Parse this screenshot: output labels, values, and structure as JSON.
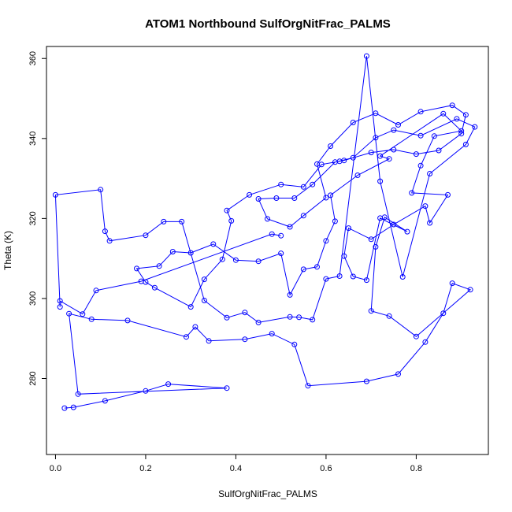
{
  "chart_data": {
    "type": "scatter",
    "title": "ATOM1 Northbound SulfOrgNitFrac_PALMS",
    "xlabel": "SulfOrgNitFrac_PALMS",
    "ylabel": "Theta (K)",
    "xlim": [
      -0.02,
      0.96
    ],
    "ylim": [
      261,
      363
    ],
    "xticks": [
      0.0,
      0.2,
      0.4,
      0.6,
      0.8
    ],
    "xtick_labels": [
      "0.0",
      "0.2",
      "0.4",
      "0.6",
      "0.8"
    ],
    "yticks": [
      280,
      300,
      320,
      340,
      360
    ],
    "ytick_labels": [
      "280",
      "300",
      "320",
      "340",
      "360"
    ],
    "grid": false,
    "legend": "none",
    "series_color": "#0000ff",
    "style": "open circles connected by lines",
    "points": [
      [
        0.02,
        272.6
      ],
      [
        0.04,
        272.8
      ],
      [
        0.11,
        274.4
      ],
      [
        0.2,
        276.9
      ],
      [
        0.25,
        278.6
      ],
      [
        0.38,
        277.6
      ],
      [
        0.05,
        276.1
      ],
      [
        0.03,
        296.2
      ],
      [
        0.08,
        294.8
      ],
      [
        0.16,
        294.5
      ],
      [
        0.29,
        290.4
      ],
      [
        0.31,
        292.9
      ],
      [
        0.34,
        289.4
      ],
      [
        0.42,
        289.8
      ],
      [
        0.48,
        291.2
      ],
      [
        0.53,
        288.5
      ],
      [
        0.56,
        278.2
      ],
      [
        0.69,
        279.3
      ],
      [
        0.76,
        281.1
      ],
      [
        0.82,
        289.1
      ],
      [
        0.86,
        296.3
      ],
      [
        0.88,
        303.8
      ],
      [
        0.92,
        302.2
      ],
      [
        0.8,
        290.5
      ],
      [
        0.74,
        295.6
      ],
      [
        0.7,
        296.9
      ],
      [
        0.71,
        312.9
      ],
      [
        0.73,
        320.3
      ],
      [
        0.78,
        316.7
      ],
      [
        0.72,
        320.1
      ],
      [
        0.69,
        304.6
      ],
      [
        0.66,
        305.5
      ],
      [
        0.64,
        310.6
      ],
      [
        0.65,
        317.6
      ],
      [
        0.7,
        314.8
      ],
      [
        0.75,
        318.5
      ],
      [
        0.82,
        323.1
      ],
      [
        0.83,
        318.9
      ],
      [
        0.87,
        325.9
      ],
      [
        0.79,
        326.4
      ],
      [
        0.81,
        333.2
      ],
      [
        0.84,
        340.6
      ],
      [
        0.9,
        341.9
      ],
      [
        0.86,
        346.2
      ],
      [
        0.72,
        335.6
      ],
      [
        0.74,
        334.9
      ],
      [
        0.67,
        330.8
      ],
      [
        0.61,
        325.8
      ],
      [
        0.62,
        319.3
      ],
      [
        0.6,
        314.4
      ],
      [
        0.58,
        307.9
      ],
      [
        0.55,
        307.3
      ],
      [
        0.52,
        300.9
      ],
      [
        0.5,
        311.3
      ],
      [
        0.45,
        309.3
      ],
      [
        0.4,
        309.6
      ],
      [
        0.35,
        313.6
      ],
      [
        0.3,
        311.4
      ],
      [
        0.26,
        311.7
      ],
      [
        0.23,
        308.1
      ],
      [
        0.18,
        307.5
      ],
      [
        0.2,
        304.1
      ],
      [
        0.22,
        302.7
      ],
      [
        0.3,
        297.9
      ],
      [
        0.33,
        304.8
      ],
      [
        0.37,
        309.8
      ],
      [
        0.39,
        319.4
      ],
      [
        0.38,
        322.0
      ],
      [
        0.43,
        325.9
      ],
      [
        0.5,
        328.5
      ],
      [
        0.55,
        327.9
      ],
      [
        0.59,
        333.5
      ],
      [
        0.63,
        334.3
      ],
      [
        0.64,
        334.5
      ],
      [
        0.7,
        336.5
      ],
      [
        0.75,
        337.2
      ],
      [
        0.8,
        336.1
      ],
      [
        0.85,
        337.0
      ],
      [
        0.9,
        341.2
      ],
      [
        0.91,
        345.9
      ],
      [
        0.88,
        348.3
      ],
      [
        0.81,
        346.7
      ],
      [
        0.76,
        343.4
      ],
      [
        0.71,
        346.3
      ],
      [
        0.66,
        344.0
      ],
      [
        0.61,
        338.1
      ],
      [
        0.58,
        333.6
      ],
      [
        0.6,
        325.2
      ],
      [
        0.55,
        320.7
      ],
      [
        0.52,
        317.9
      ],
      [
        0.47,
        319.9
      ],
      [
        0.45,
        324.9
      ],
      [
        0.49,
        325.1
      ],
      [
        0.53,
        325.1
      ],
      [
        0.57,
        328.5
      ],
      [
        0.62,
        334.1
      ],
      [
        0.66,
        335.2
      ],
      [
        0.71,
        340.2
      ],
      [
        0.75,
        342.1
      ],
      [
        0.81,
        340.7
      ],
      [
        0.89,
        344.9
      ],
      [
        0.93,
        342.9
      ],
      [
        0.91,
        338.5
      ],
      [
        0.83,
        331.2
      ],
      [
        0.77,
        305.4
      ],
      [
        0.72,
        329.3
      ],
      [
        0.69,
        360.6
      ],
      [
        0.63,
        305.6
      ],
      [
        0.6,
        304.9
      ],
      [
        0.57,
        294.7
      ],
      [
        0.54,
        295.3
      ],
      [
        0.52,
        295.4
      ],
      [
        0.45,
        294.0
      ],
      [
        0.42,
        296.5
      ],
      [
        0.38,
        295.2
      ],
      [
        0.33,
        299.5
      ],
      [
        0.28,
        319.2
      ],
      [
        0.24,
        319.2
      ],
      [
        0.2,
        315.8
      ],
      [
        0.12,
        314.4
      ],
      [
        0.11,
        316.8
      ],
      [
        0.1,
        327.2
      ],
      [
        0.0,
        325.9
      ],
      [
        0.01,
        297.9
      ],
      [
        0.01,
        299.4
      ],
      [
        0.06,
        296.1
      ],
      [
        0.09,
        302.0
      ],
      [
        0.19,
        304.3
      ],
      [
        0.48,
        316.1
      ],
      [
        0.5,
        315.7
      ]
    ]
  }
}
